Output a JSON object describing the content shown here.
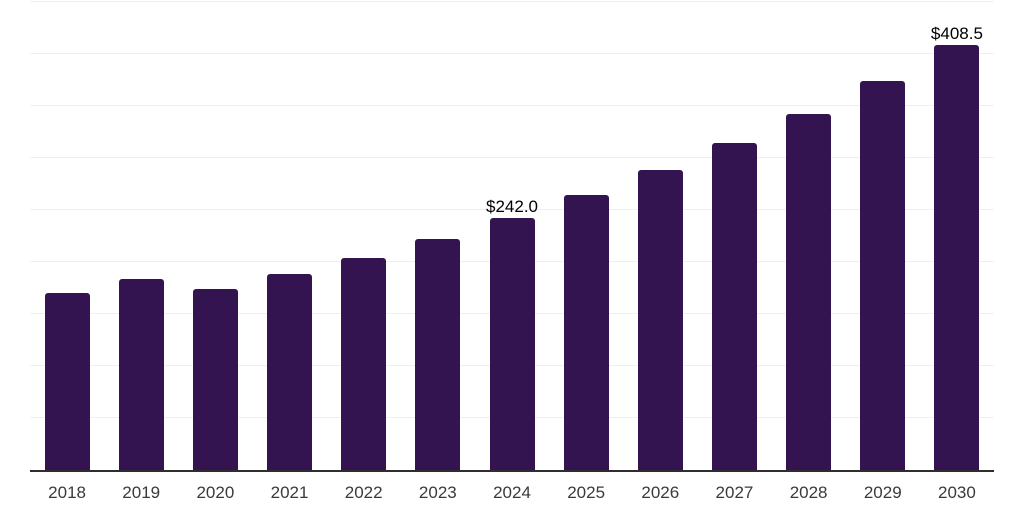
{
  "chart_data": {
    "type": "bar",
    "title": "",
    "xlabel": "",
    "ylabel": "",
    "categories": [
      "2018",
      "2019",
      "2020",
      "2021",
      "2022",
      "2023",
      "2024",
      "2025",
      "2026",
      "2027",
      "2028",
      "2029",
      "2030"
    ],
    "values": [
      170.0,
      183.5,
      174.0,
      188.5,
      204.0,
      222.0,
      242.0,
      264.0,
      288.0,
      314.0,
      342.0,
      374.0,
      408.5
    ],
    "annotations": [
      {
        "category": "2024",
        "text": "$242.0"
      },
      {
        "category": "2030",
        "text": "$408.5"
      }
    ],
    "ylim": [
      0,
      450
    ],
    "grid_step": 50,
    "grid": "horizontal",
    "y_axis_labels_visible": false,
    "legend_position": "none",
    "bar_color": "#331450",
    "axis_line_color": "#2e2e2e",
    "gridline_color": "#efefef",
    "tick_label_color": "#3a3a3a",
    "value_label_color": "#000000",
    "background_color": "#ffffff"
  }
}
